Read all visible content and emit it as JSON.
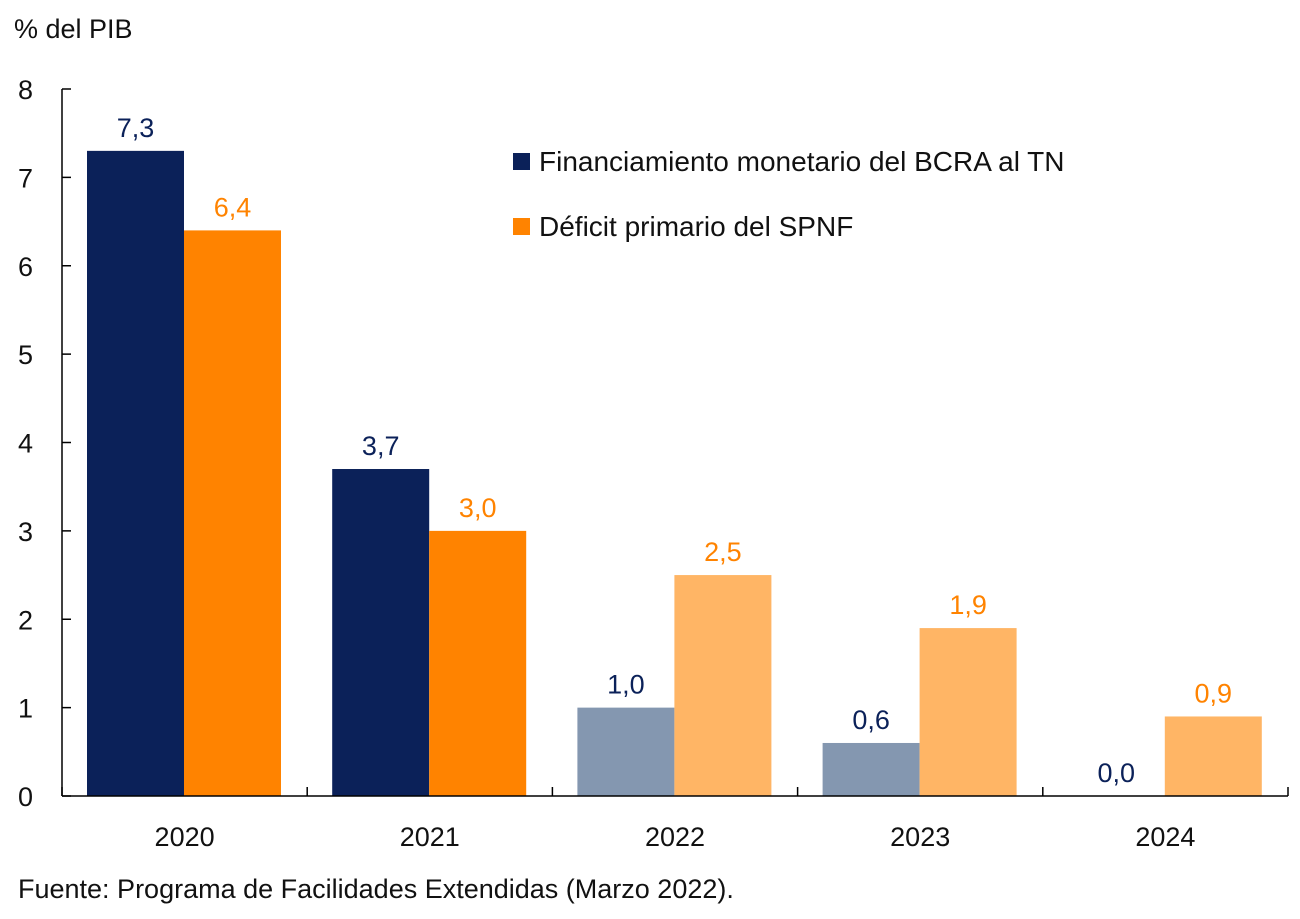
{
  "chart_data": {
    "type": "bar",
    "title": "",
    "ylabel": "% del PIB",
    "xlabel": "",
    "ylim": [
      0,
      8
    ],
    "yticks": [
      0,
      1,
      2,
      3,
      4,
      5,
      6,
      7,
      8
    ],
    "categories": [
      "2020",
      "2021",
      "2022",
      "2023",
      "2024"
    ],
    "grid": false,
    "legend_position": "top-right",
    "series": [
      {
        "name": "Financiamiento monetario del BCRA al TN",
        "values": [
          7.3,
          3.7,
          1.0,
          0.6,
          0.0
        ],
        "labels": [
          "7,3",
          "3,7",
          "1,0",
          "0,6",
          "0,0"
        ],
        "color": "#0b2159",
        "projected_color": "#8497b0",
        "label_color": "#0b2159"
      },
      {
        "name": "Déficit primario del SPNF",
        "values": [
          6.4,
          3.0,
          2.5,
          1.9,
          0.9
        ],
        "labels": [
          "6,4",
          "3,0",
          "2,5",
          "1,9",
          "0,9"
        ],
        "color": "#ff8300",
        "projected_color": "#ffb565",
        "label_color": "#ff8300"
      }
    ],
    "projected_from_index": 2,
    "source": "Fuente: Programa de Facilidades Extendidas (Marzo 2022)."
  }
}
